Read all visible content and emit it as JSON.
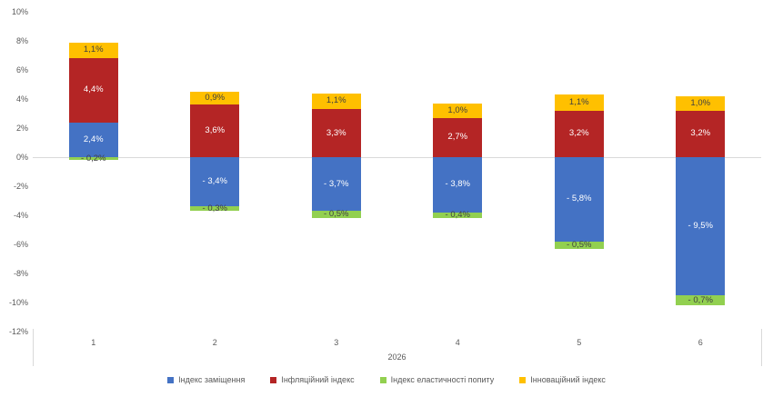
{
  "chart_data": {
    "type": "bar",
    "subtype": "stacked-column-with-negatives",
    "title": "",
    "categories": [
      "1",
      "2",
      "3",
      "4",
      "5",
      "6"
    ],
    "group_label": "2026",
    "series": [
      {
        "name": "Індекс заміщення",
        "color": "#4472C4",
        "label_color": "#FFFFFF",
        "values": [
          2.4,
          -3.4,
          -3.7,
          -3.8,
          -5.8,
          -9.5
        ],
        "labels": [
          "2,4%",
          "- 3,4%",
          "- 3,7%",
          "- 3,8%",
          "- 5,8%",
          "- 9,5%"
        ]
      },
      {
        "name": "Інфляційний індекс",
        "color": "#B42525",
        "label_color": "#FFFFFF",
        "values": [
          4.4,
          3.6,
          3.3,
          2.7,
          3.2,
          3.2
        ],
        "labels": [
          "4,4%",
          "3,6%",
          "3,3%",
          "2,7%",
          "3,2%",
          "3,2%"
        ]
      },
      {
        "name": "Індекс еластичності попиту",
        "color": "#92D050",
        "label_color": "#404040",
        "values": [
          -0.2,
          -0.3,
          -0.5,
          -0.4,
          -0.5,
          -0.7
        ],
        "labels": [
          "- 0,2%",
          "- 0,3%",
          "- 0,5%",
          "- 0,4%",
          "- 0,5%",
          "- 0,7%"
        ]
      },
      {
        "name": "Інноваційний індекс",
        "color": "#FFC000",
        "label_color": "#404040",
        "values": [
          1.1,
          0.9,
          1.1,
          1.0,
          1.1,
          1.0
        ],
        "labels": [
          "1,1%",
          "0,9%",
          "1,1%",
          "1,0%",
          "1,1%",
          "1,0%"
        ]
      }
    ],
    "y_ticks": [
      "10%",
      "8%",
      "6%",
      "4%",
      "2%",
      "0%",
      "-2%",
      "-4%",
      "-6%",
      "-8%",
      "-10%",
      "-12%"
    ],
    "ylim": [
      -12,
      10
    ],
    "tick_step": 2,
    "grid": "zero-line-only",
    "legend_position": "bottom",
    "axis_text_color": "#595959",
    "gridline_color": "#D9D9D9"
  }
}
